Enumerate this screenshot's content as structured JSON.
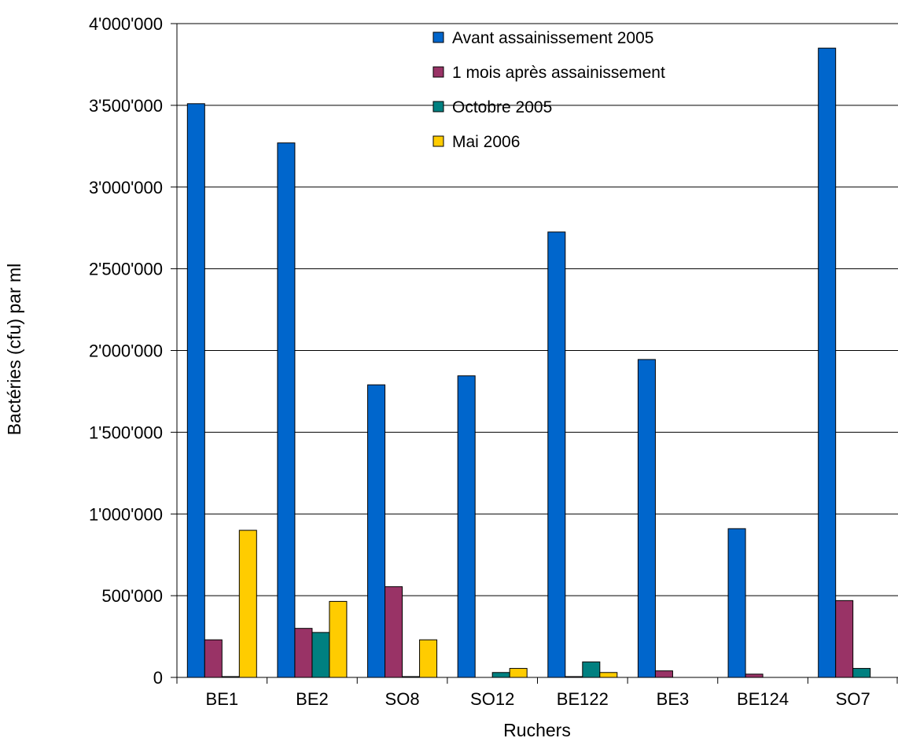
{
  "chart_data": {
    "type": "bar",
    "title": "",
    "xlabel": "Ruchers",
    "ylabel": "Bactéries (cfu) par ml",
    "ylim": [
      0,
      4000000
    ],
    "y_ticks": [
      0,
      500000,
      1000000,
      1500000,
      2000000,
      2500000,
      3000000,
      3500000,
      4000000
    ],
    "y_tick_labels": [
      "0",
      "500'000",
      "1'000'000",
      "1'500'000",
      "2'000'000",
      "2'500'000",
      "3'000'000",
      "3'500'000",
      "4'000'000"
    ],
    "grid": "horizontal major lines",
    "legend_position": "top-center",
    "categories": [
      "BE1",
      "BE2",
      "SO8",
      "SO12",
      "BE122",
      "BE3",
      "BE124",
      "SO7"
    ],
    "series": [
      {
        "name": "Avant assainissement 2005",
        "color": "#0066cc",
        "values": [
          3510000,
          3270000,
          1790000,
          1845000,
          2725000,
          1945000,
          910000,
          3850000
        ]
      },
      {
        "name": "1 mois après assainissement",
        "color": "#993366",
        "values": [
          230000,
          300000,
          555000,
          0,
          5000,
          40000,
          20000,
          470000
        ]
      },
      {
        "name": "Octobre 2005",
        "color": "#008080",
        "values": [
          5000,
          275000,
          5000,
          30000,
          95000,
          0,
          0,
          55000
        ]
      },
      {
        "name": "Mai 2006",
        "color": "#ffcc00",
        "values": [
          900000,
          465000,
          230000,
          55000,
          30000,
          0,
          0,
          0
        ]
      }
    ]
  }
}
